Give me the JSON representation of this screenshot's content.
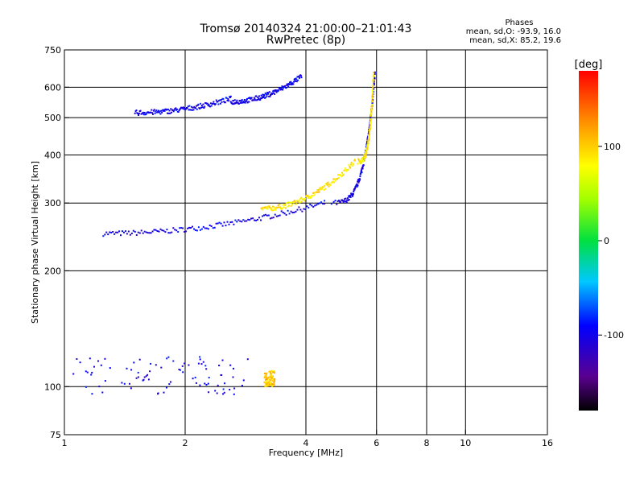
{
  "chart_data": {
    "type": "scatter",
    "title": "Tromsø 20140324 21:00:00–21:01:43",
    "subtitle": "RwPretec (8p)",
    "xlabel": "Frequency [MHz]",
    "ylabel": "Stationary phase Virtual Height [km]",
    "x_scale": "log",
    "y_scale": "log",
    "xlim": [
      1,
      16
    ],
    "ylim": [
      75,
      750
    ],
    "x_ticks": [
      1,
      2,
      4,
      6,
      8,
      10,
      16
    ],
    "x_tick_labels": [
      "1",
      "2",
      "4",
      "6",
      "8",
      "10",
      "16"
    ],
    "y_ticks": [
      75,
      100,
      200,
      300,
      400,
      500,
      600,
      750
    ],
    "y_tick_labels": [
      "75",
      "100",
      "200",
      "300",
      "400",
      "500",
      "600",
      "750"
    ],
    "x_gridlines": [
      2,
      4,
      6,
      8,
      10
    ],
    "y_gridlines": [
      100,
      200,
      300,
      400,
      500,
      600
    ],
    "grid": true,
    "stats": {
      "heading": "Phases",
      "line_o": "mean, sd,O: -93.9, 16.0",
      "line_x": "mean, sd,X: 85.2, 19.6"
    },
    "colorbar": {
      "label": "[deg]",
      "range": [
        -180,
        180
      ],
      "ticks": [
        100,
        0,
        -100
      ],
      "tick_labels": [
        "100",
        "0",
        "-100"
      ]
    },
    "traces": [
      {
        "color_phase": -100,
        "freq_range": [
          1.25,
          4.45
        ],
        "h_start": 250,
        "h_end": 300,
        "shape": "o-mode lower"
      },
      {
        "color_phase": -100,
        "freq_range": [
          4.45,
          5.95
        ],
        "h_start": 300,
        "h_end": 650,
        "shape": "o-mode cusp"
      },
      {
        "color_phase": 90,
        "freq_range": [
          3.1,
          5.3
        ],
        "h_start": 290,
        "h_end": 385,
        "shape": "x-mode lower"
      },
      {
        "color_phase": 90,
        "freq_range": [
          5.3,
          5.9
        ],
        "h_start": 385,
        "h_end": 650,
        "shape": "x-mode cusp"
      },
      {
        "color_phase": -100,
        "freq_range": [
          1.5,
          2.6
        ],
        "h_start": 515,
        "h_end": 560,
        "shape": "upper band"
      },
      {
        "color_phase": -100,
        "freq_range": [
          2.6,
          3.9
        ],
        "h_start": 550,
        "h_end": 640,
        "shape": "upper band"
      },
      {
        "color_phase": -100,
        "freq_range": [
          1.05,
          2.9
        ],
        "h_start": 95,
        "h_end": 120,
        "shape": "E region cluster"
      },
      {
        "color_phase": 100,
        "freq_range": [
          3.15,
          3.35
        ],
        "h_start": 100,
        "h_end": 110,
        "shape": "E region cluster"
      }
    ]
  }
}
